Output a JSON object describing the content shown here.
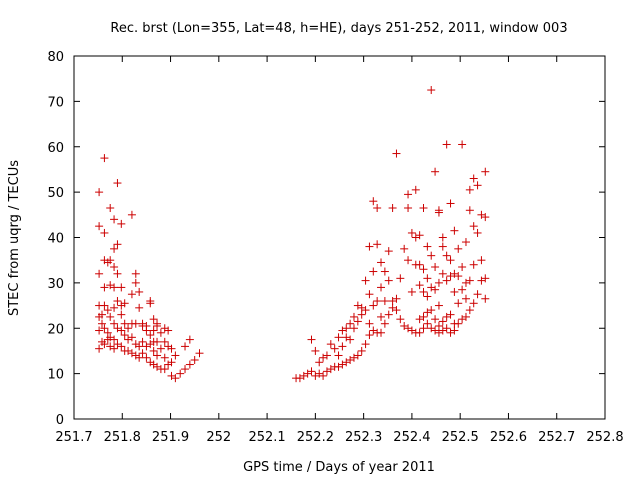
{
  "chart_data": {
    "type": "scatter",
    "title": "Rec. brst (Lon=355, Lat=48, h=HE), days 251-252, 2011, window 003",
    "xlabel": "GPS time / Days of year 2011",
    "ylabel": "STEC from uqrg / TECUs",
    "xlim": [
      251.7,
      252.8
    ],
    "ylim": [
      0,
      80
    ],
    "xticks": [
      "251.7",
      "251.8",
      "251.9",
      "252",
      "252.1",
      "252.2",
      "252.3",
      "252.4",
      "252.5",
      "252.6",
      "252.7",
      "252.8"
    ],
    "yticks": [
      "0",
      "10",
      "20",
      "30",
      "40",
      "50",
      "60",
      "70",
      "80"
    ],
    "grid": false,
    "marker": "plus",
    "marker_color": "#cc0000",
    "series": [
      {
        "points": [
          [
            251.752,
            50.0
          ],
          [
            251.752,
            42.5
          ],
          [
            251.752,
            32.0
          ],
          [
            251.752,
            25.0
          ],
          [
            251.752,
            22.5
          ],
          [
            251.752,
            19.5
          ],
          [
            251.752,
            15.5
          ],
          [
            251.758,
            23.0
          ],
          [
            251.758,
            21.0
          ],
          [
            251.758,
            17.0
          ],
          [
            251.763,
            57.5
          ],
          [
            251.763,
            41.0
          ],
          [
            251.763,
            35.0
          ],
          [
            251.763,
            29.0
          ],
          [
            251.763,
            25.0
          ],
          [
            251.763,
            20.0
          ],
          [
            251.763,
            16.5
          ],
          [
            251.77,
            34.5
          ],
          [
            251.77,
            24.0
          ],
          [
            251.77,
            19.0
          ],
          [
            251.77,
            17.5
          ],
          [
            251.775,
            46.5
          ],
          [
            251.775,
            35.0
          ],
          [
            251.775,
            29.5
          ],
          [
            251.775,
            22.5
          ],
          [
            251.775,
            18.0
          ],
          [
            251.775,
            16.0
          ],
          [
            251.783,
            44.0
          ],
          [
            251.783,
            37.5
          ],
          [
            251.783,
            33.5
          ],
          [
            251.783,
            29.0
          ],
          [
            251.783,
            24.5
          ],
          [
            251.783,
            21.0
          ],
          [
            251.783,
            17.5
          ],
          [
            251.783,
            15.5
          ],
          [
            251.79,
            52.0
          ],
          [
            251.79,
            38.5
          ],
          [
            251.79,
            32.0
          ],
          [
            251.79,
            26.0
          ],
          [
            251.79,
            20.0
          ],
          [
            251.79,
            16.5
          ],
          [
            251.798,
            43.0
          ],
          [
            251.798,
            29.0
          ],
          [
            251.798,
            25.0
          ],
          [
            251.798,
            23.0
          ],
          [
            251.798,
            19.5
          ],
          [
            251.798,
            16.0
          ],
          [
            251.805,
            25.5
          ],
          [
            251.805,
            21.0
          ],
          [
            251.805,
            18.5
          ],
          [
            251.805,
            15.0
          ],
          [
            251.812,
            20.0
          ],
          [
            251.812,
            17.5
          ],
          [
            251.812,
            15.0
          ],
          [
            251.82,
            45.0
          ],
          [
            251.82,
            27.5
          ],
          [
            251.82,
            21.0
          ],
          [
            251.82,
            18.0
          ],
          [
            251.82,
            14.5
          ],
          [
            251.828,
            32.0
          ],
          [
            251.828,
            30.0
          ],
          [
            251.828,
            21.0
          ],
          [
            251.828,
            16.5
          ],
          [
            251.828,
            14.0
          ],
          [
            251.835,
            28.0
          ],
          [
            251.835,
            24.5
          ],
          [
            251.835,
            16.0
          ],
          [
            251.835,
            13.5
          ],
          [
            251.842,
            21.0
          ],
          [
            251.842,
            20.5
          ],
          [
            251.842,
            17.0
          ],
          [
            251.842,
            14.5
          ],
          [
            251.85,
            20.5
          ],
          [
            251.85,
            19.5
          ],
          [
            251.85,
            16.0
          ],
          [
            251.85,
            13.5
          ],
          [
            251.858,
            26.0
          ],
          [
            251.858,
            25.5
          ],
          [
            251.858,
            18.5
          ],
          [
            251.858,
            16.5
          ],
          [
            251.858,
            12.5
          ],
          [
            251.865,
            22.0
          ],
          [
            251.865,
            19.5
          ],
          [
            251.865,
            17.0
          ],
          [
            251.865,
            15.0
          ],
          [
            251.865,
            12.0
          ],
          [
            251.872,
            21.0
          ],
          [
            251.872,
            20.5
          ],
          [
            251.872,
            17.0
          ],
          [
            251.872,
            14.0
          ],
          [
            251.872,
            11.5
          ],
          [
            251.88,
            19.0
          ],
          [
            251.88,
            15.5
          ],
          [
            251.88,
            11.0
          ],
          [
            251.888,
            20.0
          ],
          [
            251.888,
            17.0
          ],
          [
            251.888,
            13.5
          ],
          [
            251.888,
            11.0
          ],
          [
            251.895,
            19.5
          ],
          [
            251.895,
            16.0
          ],
          [
            251.895,
            12.0
          ],
          [
            251.902,
            15.5
          ],
          [
            251.902,
            12.5
          ],
          [
            251.902,
            9.5
          ],
          [
            251.91,
            14.0
          ],
          [
            251.91,
            9.0
          ],
          [
            251.92,
            10.0
          ],
          [
            251.93,
            11.0
          ],
          [
            251.93,
            16.0
          ],
          [
            251.94,
            12.0
          ],
          [
            251.94,
            17.5
          ],
          [
            251.95,
            13.0
          ],
          [
            251.96,
            14.5
          ],
          [
            252.16,
            9.0
          ],
          [
            252.168,
            9.0
          ],
          [
            252.176,
            9.5
          ],
          [
            252.184,
            10.0
          ],
          [
            252.192,
            10.5
          ],
          [
            252.192,
            17.5
          ],
          [
            252.2,
            15.0
          ],
          [
            252.2,
            9.5
          ],
          [
            252.208,
            12.5
          ],
          [
            252.208,
            10.0
          ],
          [
            252.216,
            13.5
          ],
          [
            252.216,
            9.5
          ],
          [
            252.224,
            14.0
          ],
          [
            252.224,
            10.5
          ],
          [
            252.232,
            16.5
          ],
          [
            252.232,
            11.0
          ],
          [
            252.24,
            15.5
          ],
          [
            252.24,
            11.5
          ],
          [
            252.248,
            18.0
          ],
          [
            252.248,
            14.0
          ],
          [
            252.248,
            11.5
          ],
          [
            252.256,
            19.5
          ],
          [
            252.256,
            16.0
          ],
          [
            252.256,
            12.0
          ],
          [
            252.264,
            20.0
          ],
          [
            252.264,
            18.0
          ],
          [
            252.264,
            12.5
          ],
          [
            252.272,
            21.0
          ],
          [
            252.272,
            17.5
          ],
          [
            252.272,
            13.0
          ],
          [
            252.28,
            22.5
          ],
          [
            252.28,
            20.0
          ],
          [
            252.28,
            13.5
          ],
          [
            252.288,
            25.0
          ],
          [
            252.288,
            21.5
          ],
          [
            252.288,
            14.0
          ],
          [
            252.296,
            24.5
          ],
          [
            252.296,
            23.0
          ],
          [
            252.296,
            15.0
          ],
          [
            252.304,
            30.5
          ],
          [
            252.304,
            24.0
          ],
          [
            252.304,
            16.5
          ],
          [
            252.312,
            38.0
          ],
          [
            252.312,
            27.5
          ],
          [
            252.312,
            21.0
          ],
          [
            252.312,
            18.5
          ],
          [
            252.32,
            48.0
          ],
          [
            252.32,
            32.5
          ],
          [
            252.32,
            25.0
          ],
          [
            252.32,
            19.5
          ],
          [
            252.328,
            46.5
          ],
          [
            252.328,
            38.5
          ],
          [
            252.328,
            26.0
          ],
          [
            252.328,
            19.0
          ],
          [
            252.336,
            34.5
          ],
          [
            252.336,
            29.0
          ],
          [
            252.336,
            22.5
          ],
          [
            252.336,
            19.0
          ],
          [
            252.344,
            32.5
          ],
          [
            252.344,
            26.0
          ],
          [
            252.344,
            21.0
          ],
          [
            252.352,
            37.0
          ],
          [
            252.352,
            30.5
          ],
          [
            252.352,
            23.0
          ],
          [
            252.36,
            46.5
          ],
          [
            252.36,
            26.0
          ],
          [
            252.36,
            24.5
          ],
          [
            252.368,
            58.5
          ],
          [
            252.368,
            26.5
          ],
          [
            252.368,
            24.0
          ],
          [
            252.376,
            31.0
          ],
          [
            252.376,
            22.0
          ],
          [
            252.384,
            37.5
          ],
          [
            252.384,
            20.5
          ],
          [
            252.392,
            49.5
          ],
          [
            252.392,
            46.5
          ],
          [
            252.392,
            35.0
          ],
          [
            252.392,
            20.0
          ],
          [
            252.4,
            41.0
          ],
          [
            252.4,
            28.0
          ],
          [
            252.4,
            19.5
          ],
          [
            252.408,
            50.5
          ],
          [
            252.408,
            40.0
          ],
          [
            252.408,
            34.0
          ],
          [
            252.408,
            19.0
          ],
          [
            252.416,
            40.5
          ],
          [
            252.416,
            34.0
          ],
          [
            252.416,
            29.5
          ],
          [
            252.416,
            22.0
          ],
          [
            252.416,
            19.0
          ],
          [
            252.424,
            46.5
          ],
          [
            252.424,
            33.0
          ],
          [
            252.424,
            28.0
          ],
          [
            252.424,
            22.5
          ],
          [
            252.424,
            20.0
          ],
          [
            252.432,
            38.0
          ],
          [
            252.432,
            31.0
          ],
          [
            252.432,
            27.0
          ],
          [
            252.432,
            23.5
          ],
          [
            252.432,
            21.0
          ],
          [
            252.44,
            72.5
          ],
          [
            252.44,
            36.0
          ],
          [
            252.44,
            29.0
          ],
          [
            252.44,
            24.0
          ],
          [
            252.44,
            20.0
          ],
          [
            252.448,
            54.5
          ],
          [
            252.448,
            33.5
          ],
          [
            252.448,
            28.5
          ],
          [
            252.448,
            22.0
          ],
          [
            252.448,
            19.5
          ],
          [
            252.456,
            46.0
          ],
          [
            252.456,
            45.5
          ],
          [
            252.456,
            30.0
          ],
          [
            252.456,
            25.0
          ],
          [
            252.456,
            20.5
          ],
          [
            252.456,
            19.0
          ],
          [
            252.464,
            40.0
          ],
          [
            252.464,
            38.0
          ],
          [
            252.464,
            32.0
          ],
          [
            252.464,
            21.5
          ],
          [
            252.464,
            19.5
          ],
          [
            252.472,
            60.5
          ],
          [
            252.472,
            36.0
          ],
          [
            252.472,
            30.5
          ],
          [
            252.472,
            22.5
          ],
          [
            252.472,
            20.0
          ],
          [
            252.48,
            47.5
          ],
          [
            252.48,
            35.0
          ],
          [
            252.48,
            31.5
          ],
          [
            252.48,
            23.0
          ],
          [
            252.48,
            19.0
          ],
          [
            252.488,
            41.5
          ],
          [
            252.488,
            32.0
          ],
          [
            252.488,
            28.0
          ],
          [
            252.488,
            21.0
          ],
          [
            252.488,
            19.5
          ],
          [
            252.496,
            37.5
          ],
          [
            252.496,
            31.5
          ],
          [
            252.496,
            25.5
          ],
          [
            252.496,
            21.0
          ],
          [
            252.504,
            60.5
          ],
          [
            252.504,
            33.5
          ],
          [
            252.504,
            28.5
          ],
          [
            252.504,
            22.0
          ],
          [
            252.512,
            39.0
          ],
          [
            252.512,
            30.0
          ],
          [
            252.512,
            26.5
          ],
          [
            252.512,
            22.5
          ],
          [
            252.52,
            50.5
          ],
          [
            252.52,
            46.0
          ],
          [
            252.52,
            30.5
          ],
          [
            252.52,
            24.0
          ],
          [
            252.528,
            53.0
          ],
          [
            252.528,
            42.5
          ],
          [
            252.528,
            34.0
          ],
          [
            252.528,
            25.5
          ],
          [
            252.536,
            51.5
          ],
          [
            252.536,
            41.0
          ],
          [
            252.536,
            27.5
          ],
          [
            252.544,
            45.0
          ],
          [
            252.544,
            35.0
          ],
          [
            252.544,
            30.5
          ],
          [
            252.552,
            54.5
          ],
          [
            252.552,
            44.5
          ],
          [
            252.552,
            31.0
          ],
          [
            252.552,
            26.5
          ]
        ]
      }
    ]
  }
}
